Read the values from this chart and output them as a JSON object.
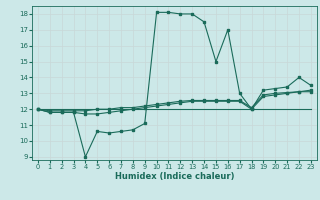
{
  "title": "",
  "xlabel": "Humidex (Indice chaleur)",
  "bg_color": "#cce8e8",
  "line_color": "#1a6b5a",
  "grid_color": "#b0d0d0",
  "xlim": [
    -0.5,
    23.5
  ],
  "ylim": [
    8.8,
    18.5
  ],
  "yticks": [
    9,
    10,
    11,
    12,
    13,
    14,
    15,
    16,
    17,
    18
  ],
  "xticks": [
    0,
    1,
    2,
    3,
    4,
    5,
    6,
    7,
    8,
    9,
    10,
    11,
    12,
    13,
    14,
    15,
    16,
    17,
    18,
    19,
    20,
    21,
    22,
    23
  ],
  "line1_x": [
    0,
    1,
    2,
    3,
    4,
    5,
    6,
    7,
    8,
    9,
    10,
    11,
    12,
    13,
    14,
    15,
    16,
    17,
    18,
    19,
    20,
    21,
    22,
    23
  ],
  "line1_y": [
    12.0,
    11.8,
    11.8,
    11.8,
    9.0,
    10.6,
    10.5,
    10.6,
    10.7,
    11.1,
    18.1,
    18.1,
    18.0,
    18.0,
    17.5,
    15.0,
    17.0,
    13.0,
    12.0,
    13.2,
    13.3,
    13.4,
    14.0,
    13.5
  ],
  "line2_x": [
    0,
    1,
    2,
    3,
    4,
    5,
    6,
    7,
    8,
    9,
    10,
    11,
    12,
    13,
    14,
    15,
    16,
    17,
    18,
    19,
    20,
    21,
    22,
    23
  ],
  "line2_y": [
    12.0,
    11.8,
    11.8,
    11.8,
    11.7,
    11.7,
    11.8,
    11.9,
    12.0,
    12.1,
    12.2,
    12.3,
    12.4,
    12.5,
    12.5,
    12.5,
    12.5,
    12.5,
    12.0,
    12.8,
    12.9,
    13.0,
    13.1,
    13.1
  ],
  "line3_x": [
    0,
    1,
    2,
    3,
    4,
    5,
    6,
    7,
    8,
    9,
    10,
    11,
    12,
    13,
    14,
    15,
    16,
    17,
    18,
    19,
    20,
    21,
    22,
    23
  ],
  "line3_y": [
    12.0,
    11.9,
    11.9,
    11.9,
    11.9,
    12.0,
    12.0,
    12.1,
    12.1,
    12.2,
    12.3,
    12.4,
    12.5,
    12.55,
    12.55,
    12.55,
    12.55,
    12.55,
    12.1,
    12.9,
    13.0,
    13.05,
    13.1,
    13.2
  ],
  "line4_x": [
    0,
    1,
    2,
    3,
    4,
    5,
    6,
    7,
    8,
    9,
    10,
    11,
    12,
    13,
    14,
    15,
    16,
    17,
    18,
    19,
    20,
    21,
    22,
    23
  ],
  "line4_y": [
    12.0,
    12.0,
    12.0,
    12.0,
    12.0,
    12.0,
    12.0,
    12.0,
    12.0,
    12.0,
    12.0,
    12.0,
    12.0,
    12.0,
    12.0,
    12.0,
    12.0,
    12.0,
    12.0,
    12.0,
    12.0,
    12.0,
    12.0,
    12.0
  ]
}
